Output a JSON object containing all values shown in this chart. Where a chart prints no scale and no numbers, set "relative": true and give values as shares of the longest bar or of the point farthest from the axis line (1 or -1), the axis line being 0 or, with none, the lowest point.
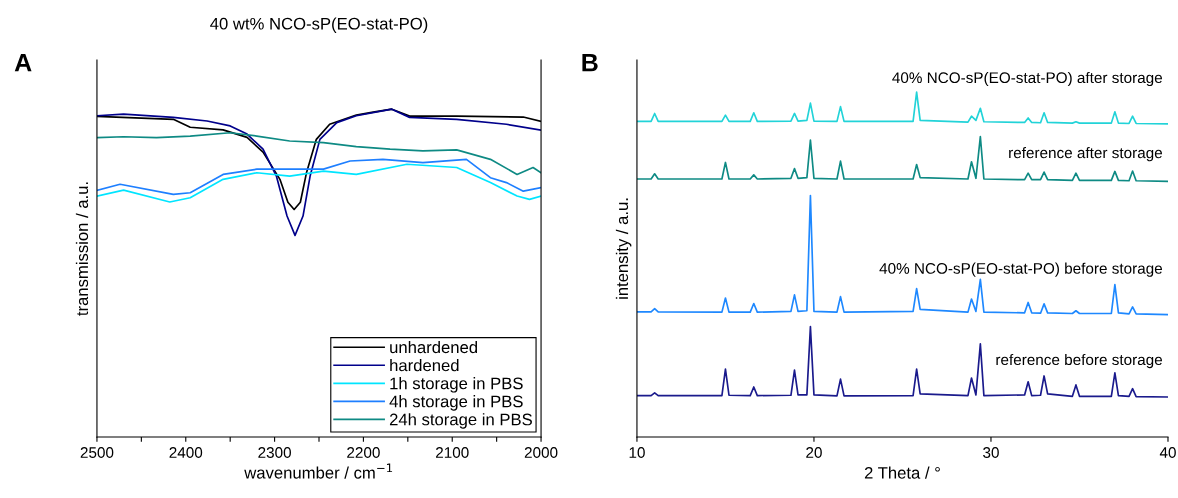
{
  "chart_data": [
    {
      "type": "line",
      "title": "40 wt% NCO-sP(EO-stat-PO)",
      "xlabel": "wavenumber / cm$^{−1}$",
      "ylabel": "transmission / a.u.",
      "relative": true,
      "legend": "bottom right",
      "annotations": [
        "A"
      ],
      "xlim": [
        2500,
        2000
      ],
      "xticks": [
        2500,
        {
          "value": 2450,
          "label": null
        },
        2400,
        {
          "value": 2350,
          "label": null
        },
        2300,
        {
          "value": 2250,
          "label": null
        },
        2200,
        {
          "value": 2150,
          "label": null
        },
        2100,
        {
          "value": 2050,
          "label": null
        },
        2000
      ],
      "series": [
        {
          "name": "unhardened",
          "color": "#000000",
          "x": [
            2500,
            2414,
            2395,
            2358,
            2331,
            2313,
            2294,
            2285,
            2278,
            2271,
            2264,
            2253,
            2238,
            2208,
            2189,
            2168,
            2148,
            2095,
            2020,
            2000
          ],
          "values": [
            0.978,
            0.969,
            0.945,
            0.937,
            0.914,
            0.869,
            0.786,
            0.716,
            0.694,
            0.716,
            0.807,
            0.908,
            0.954,
            0.982,
            0.991,
            1.0,
            0.979,
            0.979,
            0.976,
            0.963
          ]
        },
        {
          "name": "hardened",
          "color": "#00008b",
          "x": [
            2500,
            2470,
            2414,
            2376,
            2350,
            2331,
            2313,
            2298,
            2286,
            2277,
            2268,
            2260,
            2249,
            2230,
            2208,
            2168,
            2148,
            2095,
            2039,
            2000
          ],
          "values": [
            0.98,
            0.985,
            0.975,
            0.964,
            0.949,
            0.924,
            0.878,
            0.796,
            0.674,
            0.615,
            0.674,
            0.796,
            0.908,
            0.959,
            0.98,
            1.0,
            0.975,
            0.969,
            0.954,
            0.936
          ]
        },
        {
          "name": "1h storage in PBS",
          "color": "#00e5ff",
          "x": [
            2500,
            2470,
            2418,
            2395,
            2358,
            2320,
            2283,
            2245,
            2208,
            2151,
            2095,
            2057,
            2027,
            2013,
            2000
          ],
          "values": [
            0.735,
            0.753,
            0.717,
            0.73,
            0.786,
            0.806,
            0.796,
            0.811,
            0.801,
            0.832,
            0.822,
            0.776,
            0.735,
            0.725,
            0.735
          ]
        },
        {
          "name": "4h storage in PBS",
          "color": "#1e7fff",
          "x": [
            2500,
            2474,
            2414,
            2395,
            2358,
            2320,
            2283,
            2245,
            2215,
            2178,
            2133,
            2084,
            2057,
            2039,
            2020,
            2000
          ],
          "values": [
            0.752,
            0.771,
            0.74,
            0.745,
            0.801,
            0.817,
            0.817,
            0.817,
            0.842,
            0.847,
            0.837,
            0.847,
            0.791,
            0.776,
            0.75,
            0.761
          ]
        },
        {
          "name": "24h storage in PBS",
          "color": "#0e8a84",
          "x": [
            2500,
            2470,
            2433,
            2395,
            2350,
            2320,
            2283,
            2245,
            2208,
            2170,
            2133,
            2095,
            2057,
            2027,
            2009,
            2000
          ],
          "values": [
            0.913,
            0.916,
            0.913,
            0.918,
            0.928,
            0.918,
            0.903,
            0.898,
            0.886,
            0.878,
            0.873,
            0.876,
            0.847,
            0.801,
            0.822,
            0.806
          ]
        }
      ]
    },
    {
      "type": "line",
      "xlabel": "2 Theta / °",
      "ylabel": "intensity / a.u.",
      "relative": true,
      "annotations": [
        "B"
      ],
      "xlim": [
        10,
        40
      ],
      "xticks": [
        10,
        20,
        30,
        40
      ],
      "x": [
        10,
        10.8,
        11,
        11.2,
        14.8,
        15,
        15.2,
        16.4,
        16.6,
        16.8,
        18.7,
        18.9,
        19.1,
        19.6,
        19.8,
        20.0,
        21.3,
        21.5,
        21.7,
        25.6,
        25.8,
        26.0,
        28.7,
        28.9,
        29.15,
        29.4,
        29.6,
        31.9,
        32.1,
        32.3,
        32.8,
        33,
        33.2,
        34.6,
        34.8,
        35.0,
        36.8,
        37,
        37.2,
        37.8,
        38,
        38.2,
        40
      ],
      "series": [
        {
          "name": "40% NCO-sP(EO-stat-PO) after storage",
          "color": "#22d3d8",
          "values": [
            0.915,
            0.915,
            0.938,
            0.915,
            0.915,
            0.933,
            0.915,
            0.915,
            0.94,
            0.915,
            0.916,
            0.938,
            0.916,
            0.918,
            0.968,
            0.916,
            0.915,
            0.958,
            0.915,
            0.915,
            1.0,
            0.918,
            0.913,
            0.93,
            0.918,
            0.953,
            0.914,
            0.912,
            0.925,
            0.912,
            0.911,
            0.94,
            0.912,
            0.91,
            0.914,
            0.91,
            0.91,
            0.943,
            0.91,
            0.909,
            0.93,
            0.909,
            0.908
          ]
        },
        {
          "name": "reference after storage",
          "color": "#0e8a84",
          "values": [
            0.748,
            0.748,
            0.763,
            0.748,
            0.748,
            0.796,
            0.748,
            0.748,
            0.76,
            0.748,
            0.75,
            0.778,
            0.75,
            0.752,
            0.861,
            0.75,
            0.748,
            0.8,
            0.748,
            0.748,
            0.79,
            0.752,
            0.748,
            0.798,
            0.75,
            0.871,
            0.748,
            0.746,
            0.765,
            0.746,
            0.746,
            0.768,
            0.746,
            0.744,
            0.765,
            0.744,
            0.744,
            0.77,
            0.744,
            0.743,
            0.771,
            0.743,
            0.741
          ]
        },
        {
          "name": "40% NCO-sP(EO-stat-PO) before storage",
          "color": "#1e88ff",
          "values": [
            0.363,
            0.363,
            0.372,
            0.363,
            0.362,
            0.403,
            0.362,
            0.362,
            0.387,
            0.362,
            0.364,
            0.412,
            0.364,
            0.366,
            0.7,
            0.364,
            0.362,
            0.407,
            0.362,
            0.364,
            0.43,
            0.37,
            0.362,
            0.4,
            0.364,
            0.457,
            0.362,
            0.36,
            0.39,
            0.36,
            0.359,
            0.386,
            0.36,
            0.358,
            0.366,
            0.358,
            0.358,
            0.442,
            0.36,
            0.357,
            0.377,
            0.357,
            0.355
          ]
        },
        {
          "name": "reference before storage",
          "color": "#1a1a8c",
          "values": [
            0.12,
            0.12,
            0.128,
            0.12,
            0.12,
            0.197,
            0.121,
            0.12,
            0.145,
            0.12,
            0.121,
            0.194,
            0.122,
            0.122,
            0.32,
            0.122,
            0.119,
            0.168,
            0.119,
            0.12,
            0.197,
            0.125,
            0.12,
            0.171,
            0.122,
            0.27,
            0.12,
            0.122,
            0.16,
            0.12,
            0.121,
            0.177,
            0.125,
            0.118,
            0.151,
            0.118,
            0.118,
            0.186,
            0.12,
            0.118,
            0.14,
            0.117,
            0.116
          ]
        }
      ]
    }
  ]
}
